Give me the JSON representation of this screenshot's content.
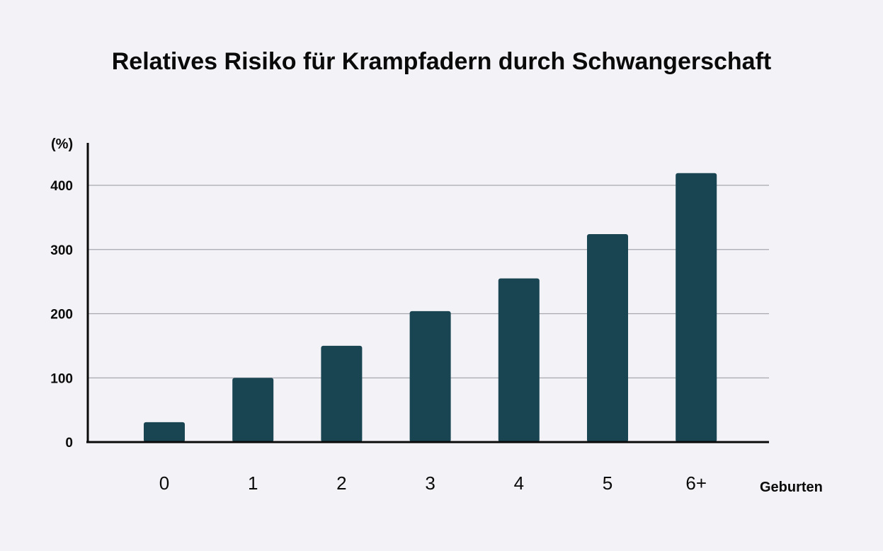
{
  "chart_data": {
    "type": "bar",
    "title": "Relatives Risiko für Krampfadern durch Schwangerschaft",
    "ylabel": "(%)",
    "xlabel": "Geburten",
    "categories": [
      "0",
      "1",
      "2",
      "3",
      "4",
      "5",
      "6+"
    ],
    "values": [
      31,
      100,
      150,
      204,
      255,
      324,
      419
    ],
    "ylim": [
      0,
      465
    ],
    "yticks": [
      0,
      100,
      200,
      300,
      400
    ],
    "grid": true,
    "colors": {
      "bar": "#194552",
      "grid": "#a6a6b0",
      "axis": "#0a0a0a",
      "background": "#f3f3f7"
    }
  }
}
